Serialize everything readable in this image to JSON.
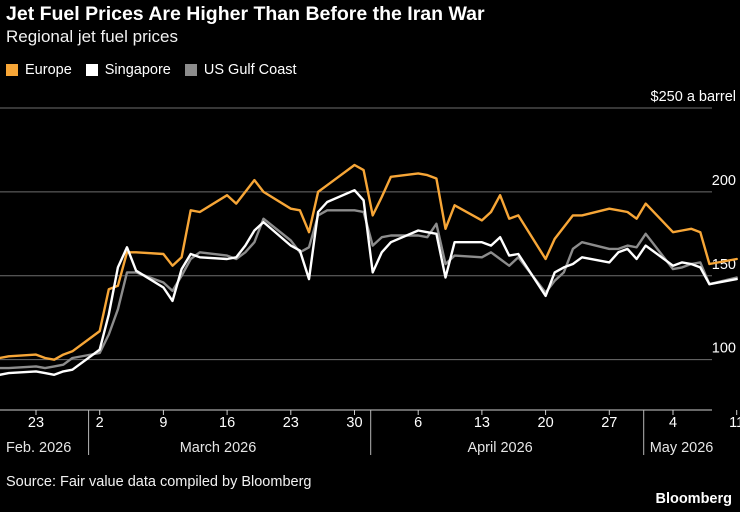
{
  "header": {
    "title": "Jet Fuel Prices Are Higher Than Before the Iran War",
    "subtitle": "Regional jet fuel prices"
  },
  "footer": {
    "source": "Source: Fair value data compiled by Bloomberg",
    "brand": "Bloomberg"
  },
  "colors": {
    "background": "#000000",
    "europe": "#f7a637",
    "singapore": "#ffffff",
    "us_gulf_coast": "#8c8c8c",
    "grid": "#6e6e6e",
    "text": "#ffffff"
  },
  "chart_data": {
    "type": "line",
    "title": "Jet Fuel Prices Are Higher Than Before the Iran War",
    "subtitle": "Regional jet fuel prices",
    "ylabel": "$250 a barrel",
    "ylim": [
      70,
      250
    ],
    "yticks": [
      100,
      150,
      200,
      250
    ],
    "ytick_labels": [
      "100",
      "150",
      "200",
      "$250 a barrel"
    ],
    "y_axis_side": "right",
    "grid": true,
    "legend_position": "top-left",
    "x_tick_labels": [
      "23",
      "2",
      "9",
      "16",
      "23",
      "30",
      "6",
      "13",
      "20",
      "27",
      "4",
      "11"
    ],
    "x_tick_dates": [
      "2026-02-23",
      "2026-03-02",
      "2026-03-09",
      "2026-03-16",
      "2026-03-23",
      "2026-03-30",
      "2026-04-06",
      "2026-04-13",
      "2026-04-20",
      "2026-04-27",
      "2026-05-04",
      "2026-05-11"
    ],
    "month_labels": [
      {
        "label": "Feb. 2026",
        "date": "2026-02-19"
      },
      {
        "label": "March 2026",
        "date": "2026-03-15"
      },
      {
        "label": "April 2026",
        "date": "2026-04-15"
      },
      {
        "label": "May 2026",
        "date": "2026-05-08"
      }
    ],
    "month_separators": [
      "2026-03-01",
      "2026-04-01",
      "2026-05-01"
    ],
    "x": [
      "2026-02-19",
      "2026-02-20",
      "2026-02-23",
      "2026-02-24",
      "2026-02-25",
      "2026-02-26",
      "2026-02-27",
      "2026-03-02",
      "2026-03-03",
      "2026-03-04",
      "2026-03-05",
      "2026-03-06",
      "2026-03-09",
      "2026-03-10",
      "2026-03-11",
      "2026-03-12",
      "2026-03-13",
      "2026-03-16",
      "2026-03-17",
      "2026-03-18",
      "2026-03-19",
      "2026-03-20",
      "2026-03-23",
      "2026-03-24",
      "2026-03-25",
      "2026-03-26",
      "2026-03-27",
      "2026-03-30",
      "2026-03-31",
      "2026-04-01",
      "2026-04-02",
      "2026-04-03",
      "2026-04-06",
      "2026-04-07",
      "2026-04-08",
      "2026-04-09",
      "2026-04-10",
      "2026-04-13",
      "2026-04-14",
      "2026-04-15",
      "2026-04-16",
      "2026-04-17",
      "2026-04-20",
      "2026-04-21",
      "2026-04-22",
      "2026-04-23",
      "2026-04-24",
      "2026-04-27",
      "2026-04-28",
      "2026-04-29",
      "2026-04-30",
      "2026-05-01",
      "2026-05-04",
      "2026-05-05",
      "2026-05-06",
      "2026-05-07",
      "2026-05-08",
      "2026-05-11"
    ],
    "series": [
      {
        "name": "Europe",
        "color": "#f7a637",
        "values": [
          101,
          102,
          103,
          101,
          100,
          103,
          105,
          117,
          142,
          144,
          164,
          164,
          163,
          156,
          161,
          189,
          188,
          198,
          193,
          200,
          207,
          200,
          190,
          189,
          176,
          200,
          204,
          216,
          213,
          186,
          197,
          209,
          211,
          210,
          208,
          178,
          192,
          183,
          188,
          198,
          184,
          186,
          160,
          172,
          179,
          186,
          186,
          190,
          189,
          188,
          184,
          193,
          176,
          177,
          178,
          176,
          157,
          160
        ]
      },
      {
        "name": "Singapore",
        "color": "#ffffff",
        "values": [
          91,
          92,
          93,
          92,
          91,
          93,
          94,
          106,
          127,
          155,
          167,
          153,
          143,
          135,
          154,
          163,
          161,
          160,
          161,
          168,
          177,
          182,
          168,
          165,
          148,
          188,
          194,
          201,
          195,
          152,
          164,
          170,
          177,
          176,
          175,
          149,
          170,
          170,
          168,
          173,
          162,
          163,
          138,
          152,
          155,
          157,
          161,
          158,
          164,
          166,
          160,
          168,
          156,
          158,
          157,
          155,
          145,
          148
        ]
      },
      {
        "name": "US Gulf Coast",
        "color": "#8c8c8c",
        "values": [
          95,
          95,
          96,
          95,
          96,
          97,
          101,
          104,
          115,
          130,
          152,
          152,
          146,
          141,
          150,
          160,
          164,
          162,
          160,
          164,
          170,
          184,
          171,
          164,
          167,
          186,
          189,
          189,
          188,
          168,
          173,
          174,
          174,
          173,
          181,
          157,
          162,
          161,
          164,
          160,
          156,
          161,
          140,
          147,
          152,
          166,
          170,
          166,
          166,
          168,
          167,
          175,
          154,
          155,
          157,
          158,
          145,
          149
        ]
      }
    ]
  }
}
